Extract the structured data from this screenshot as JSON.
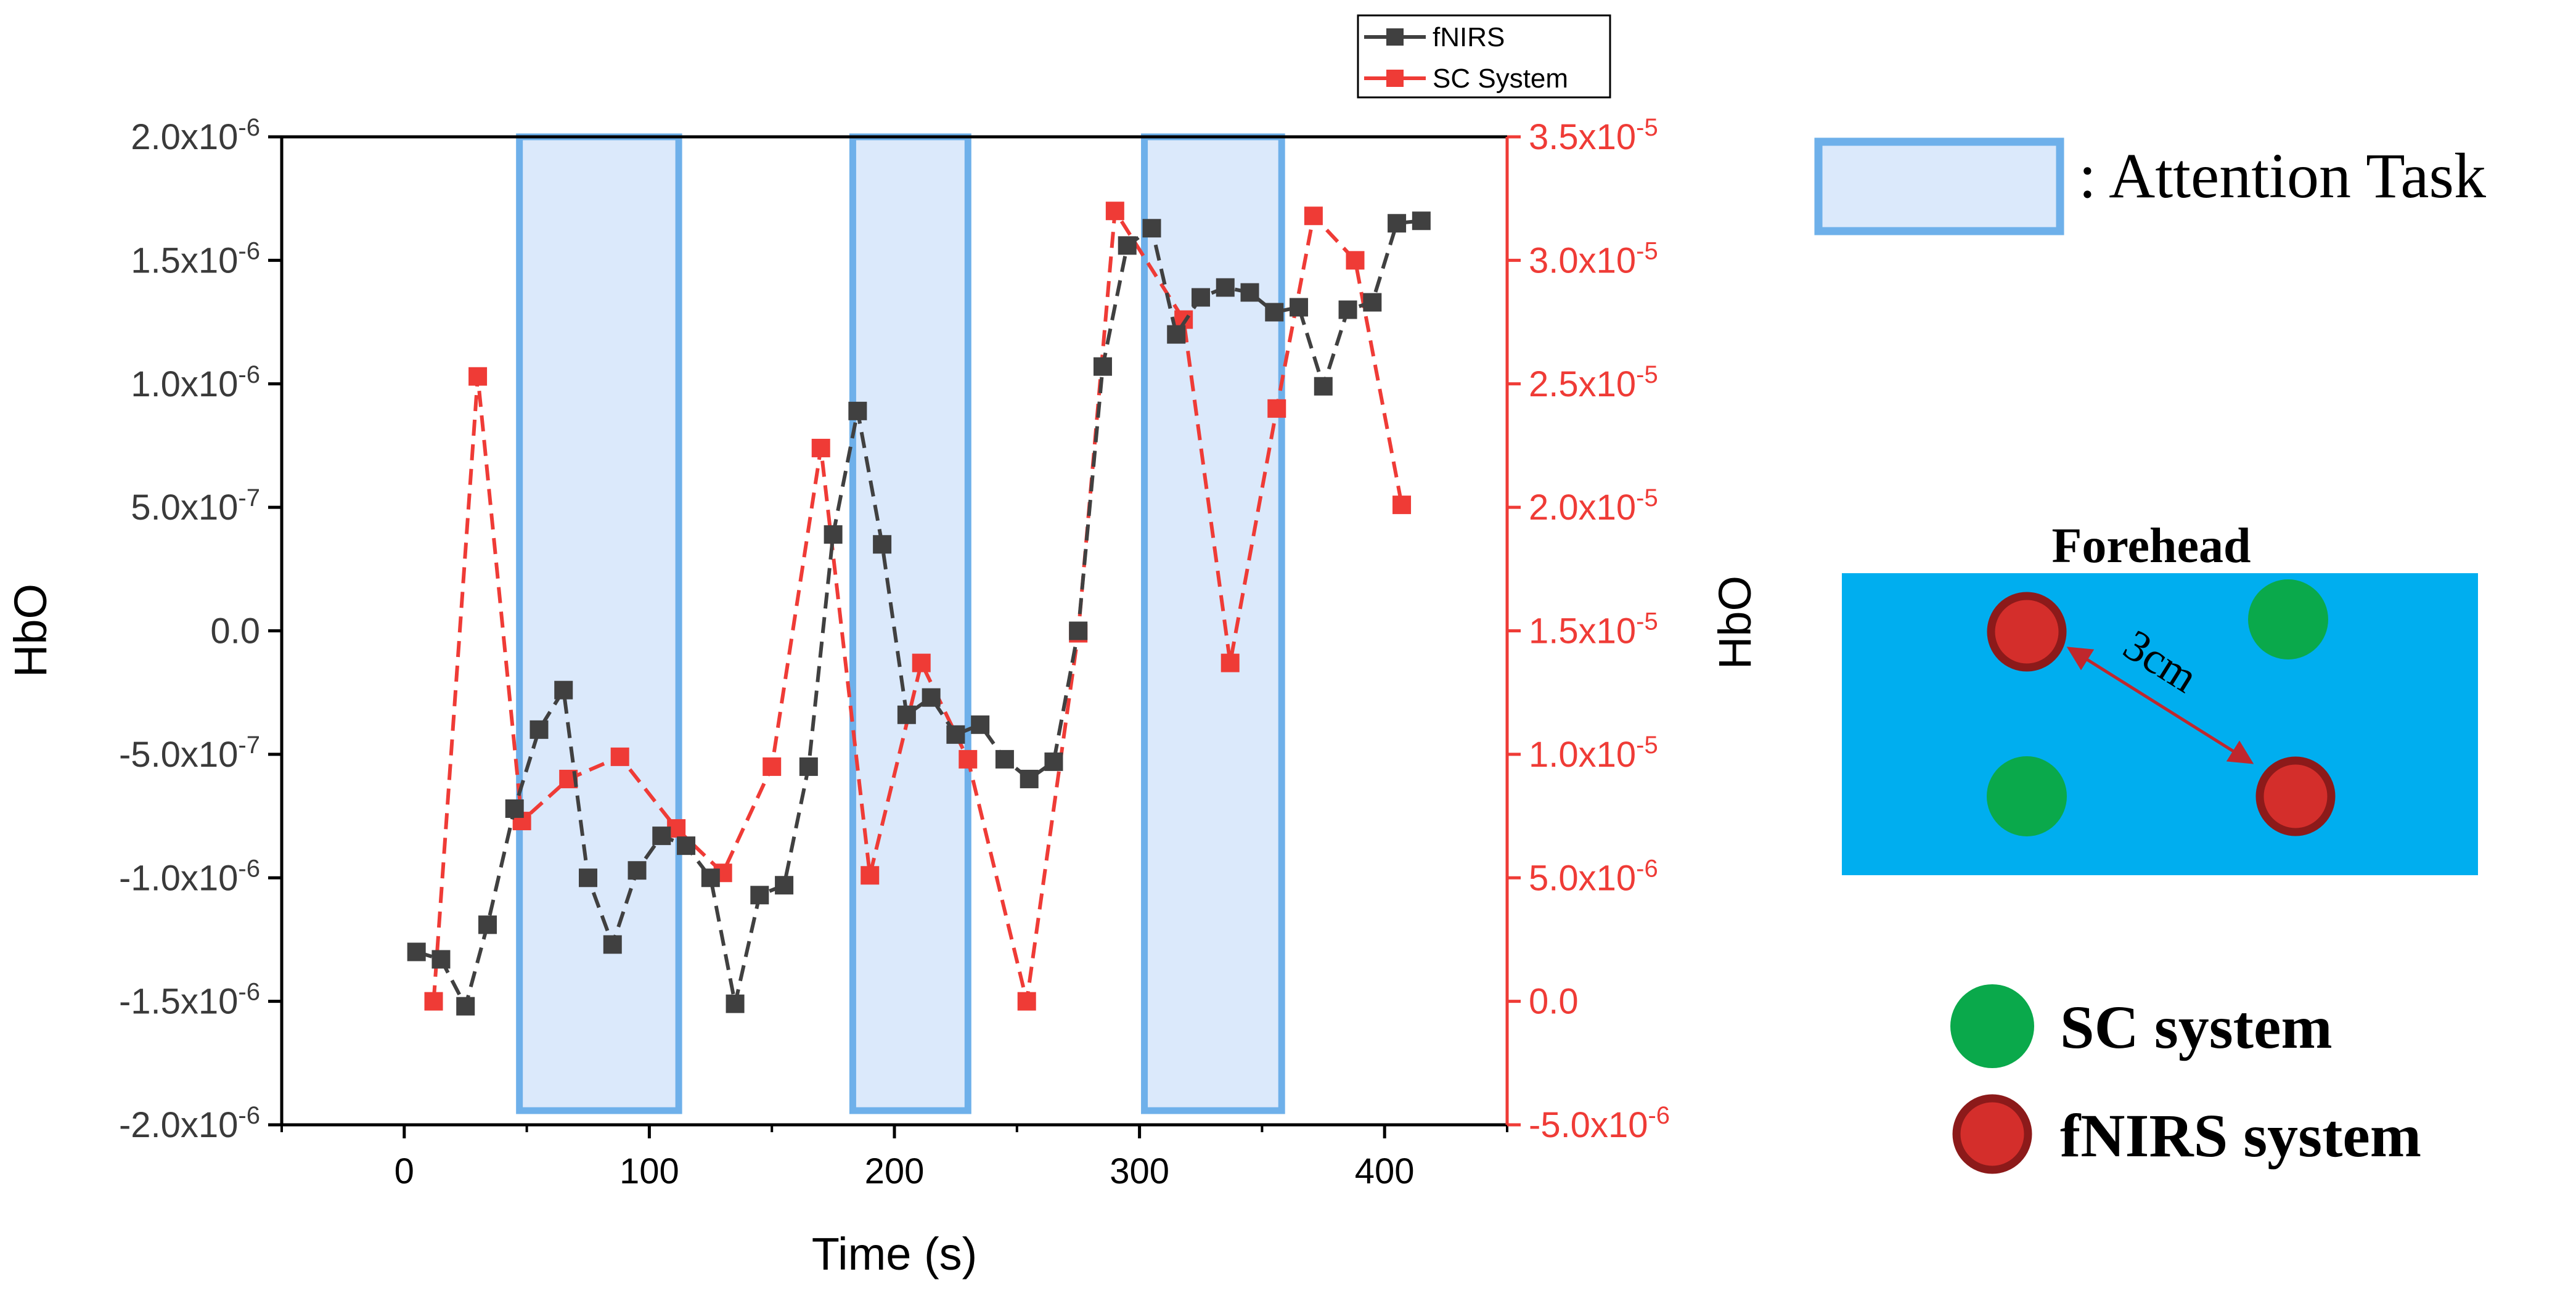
{
  "chart_data": {
    "type": "line",
    "xlabel": "Time (s)",
    "ylabel_left": "HbO",
    "ylabel_right": "HbO",
    "xlim": [
      -50,
      450
    ],
    "ylim_left": [
      -2e-06,
      2e-06
    ],
    "ylim_right": [
      -5e-06,
      3.5e-05
    ],
    "x_ticks": [
      0,
      100,
      200,
      300,
      400
    ],
    "x_tick_labels": [
      "0",
      "100",
      "200",
      "300",
      "400"
    ],
    "y_left_ticks": [
      {
        "value": 2e-06,
        "mant": "2.0x10",
        "exp": "-6"
      },
      {
        "value": 1.5e-06,
        "mant": "1.5x10",
        "exp": "-6"
      },
      {
        "value": 1e-06,
        "mant": "1.0x10",
        "exp": "-6"
      },
      {
        "value": 5e-07,
        "mant": "5.0x10",
        "exp": "-7"
      },
      {
        "value": 0.0,
        "mant": "0.0",
        "exp": ""
      },
      {
        "value": -5e-07,
        "mant": "-5.0x10",
        "exp": "-7"
      },
      {
        "value": -1e-06,
        "mant": "-1.0x10",
        "exp": "-6"
      },
      {
        "value": -1.5e-06,
        "mant": "-1.5x10",
        "exp": "-6"
      },
      {
        "value": -2e-06,
        "mant": "-2.0x10",
        "exp": "-6"
      }
    ],
    "y_right_ticks": [
      {
        "value": 3.5e-05,
        "mant": "3.5x10",
        "exp": "-5"
      },
      {
        "value": 3e-05,
        "mant": "3.0x10",
        "exp": "-5"
      },
      {
        "value": 2.5e-05,
        "mant": "2.5x10",
        "exp": "-5"
      },
      {
        "value": 2e-05,
        "mant": "2.0x10",
        "exp": "-5"
      },
      {
        "value": 1.5e-05,
        "mant": "1.5x10",
        "exp": "-5"
      },
      {
        "value": 1e-05,
        "mant": "1.0x10",
        "exp": "-5"
      },
      {
        "value": 5e-06,
        "mant": "5.0x10",
        "exp": "-6"
      },
      {
        "value": 0.0,
        "mant": "0.0",
        "exp": ""
      },
      {
        "value": -5e-06,
        "mant": "-5.0x10",
        "exp": "-6"
      }
    ],
    "shaded_regions": [
      [
        47,
        112
      ],
      [
        183,
        230
      ],
      [
        302,
        358
      ]
    ],
    "series": [
      {
        "name": "fNIRS",
        "axis": "left",
        "color": "#404040",
        "linestyle": "dashed",
        "marker": "square",
        "x": [
          5,
          15,
          25,
          34,
          45,
          55,
          65,
          75,
          85,
          95,
          105,
          115,
          125,
          135,
          145,
          155,
          165,
          175,
          185,
          195,
          205,
          215,
          225,
          235,
          245,
          255,
          265,
          275,
          285,
          295,
          305,
          315,
          325,
          335,
          345,
          355,
          365,
          375,
          385,
          395,
          405,
          415
        ],
        "y": [
          -1.3e-06,
          -1.33e-06,
          -1.52e-06,
          -1.19e-06,
          -7.2e-07,
          -4e-07,
          -2.4e-07,
          -1e-06,
          -1.27e-06,
          -9.7e-07,
          -8.3e-07,
          -8.7e-07,
          -1e-06,
          -1.51e-06,
          -1.07e-06,
          -1.03e-06,
          -5.5e-07,
          3.9e-07,
          8.9e-07,
          3.5e-07,
          -3.4e-07,
          -2.7e-07,
          -4.2e-07,
          -3.8e-07,
          -5.2e-07,
          -6e-07,
          -5.3e-07,
          0.0,
          1.07e-06,
          1.56e-06,
          1.63e-06,
          1.2e-06,
          1.35e-06,
          1.39e-06,
          1.37e-06,
          1.29e-06,
          1.31e-06,
          9.9e-07,
          1.3e-06,
          1.33e-06,
          1.65e-06,
          1.66e-06
        ]
      },
      {
        "name": "SC System",
        "axis": "right",
        "color": "#ef3b36",
        "linestyle": "dashed",
        "marker": "square",
        "x": [
          12,
          30,
          48,
          67,
          88,
          111,
          130,
          150,
          170,
          190,
          211,
          230,
          254,
          275,
          290,
          318,
          337,
          356,
          371,
          388,
          407
        ],
        "y": [
          0.0,
          2.53e-05,
          7.3e-06,
          9e-06,
          9.9e-06,
          7e-06,
          5.2e-06,
          9.5e-06,
          2.24e-05,
          5.1e-06,
          1.37e-05,
          9.8e-06,
          0.0,
          1.49e-05,
          3.2e-05,
          2.76e-05,
          1.37e-05,
          2.4e-05,
          3.18e-05,
          3e-05,
          2.01e-05
        ]
      }
    ]
  },
  "legend": {
    "fnirs_label": "fNIRS",
    "sc_label": "SC System"
  },
  "annotation": {
    "attention_label": ": Attention Task",
    "forehead_label": "Forehead",
    "distance_label": "3cm",
    "sc_system_label": "SC system",
    "fnirs_system_label": "fNIRS system"
  },
  "colors": {
    "fnirs": "#404040",
    "sc": "#ef3b36",
    "right_axis": "#ef3b36",
    "task_fill": "#dbe9fb",
    "task_stroke": "#6eb0ea",
    "forehead_fill": "#00aeef",
    "sc_dot": "#0aa94b",
    "fnirs_dot": "#d42e2b",
    "fnirs_dot_ring": "#8c1a1a",
    "distance_arrow": "#c0272d"
  }
}
